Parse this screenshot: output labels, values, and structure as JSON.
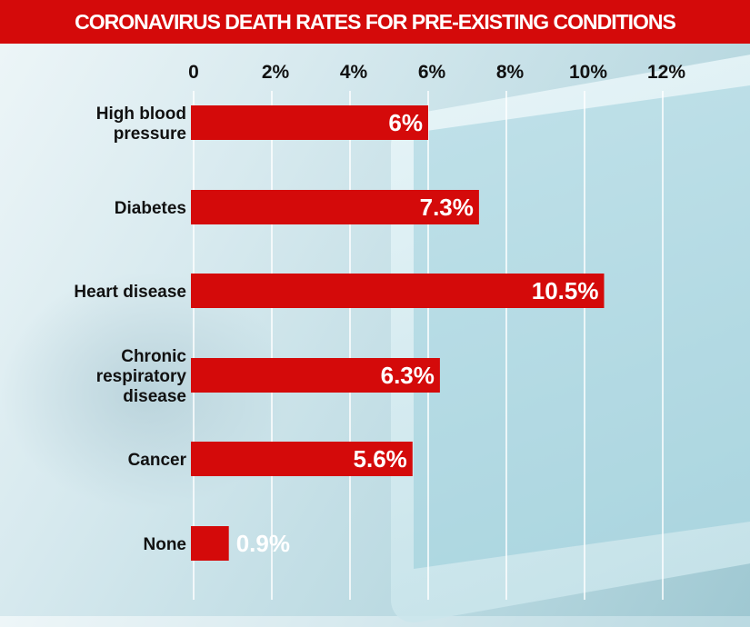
{
  "chart_data": {
    "type": "bar",
    "orientation": "horizontal",
    "title": "CORONAVIRUS DEATH RATES FOR PRE-EXISTING CONDITIONS",
    "categories": [
      [
        "High blood",
        "pressure"
      ],
      [
        "Diabetes"
      ],
      [
        "Heart disease"
      ],
      [
        "Chronic",
        "respiratory",
        "disease"
      ],
      [
        "Cancer"
      ],
      [
        "None"
      ]
    ],
    "values": [
      6,
      7.3,
      10.5,
      6.3,
      5.6,
      0.9
    ],
    "data_labels": [
      "6%",
      "7.3%",
      "10.5%",
      "6.3%",
      "5.6%",
      "0.9%"
    ],
    "xticks": [
      "0",
      "2%",
      "4%",
      "6%",
      "8%",
      "10%",
      "12%"
    ],
    "xtick_values": [
      0,
      2,
      4,
      6,
      8,
      10,
      12
    ],
    "xlim": [
      0,
      12
    ],
    "grid": true,
    "xaxis_position": "top",
    "colors": {
      "bar": "#d40a0a",
      "title_bg": "#d40a0a",
      "label_inside": "#ffffff"
    }
  }
}
